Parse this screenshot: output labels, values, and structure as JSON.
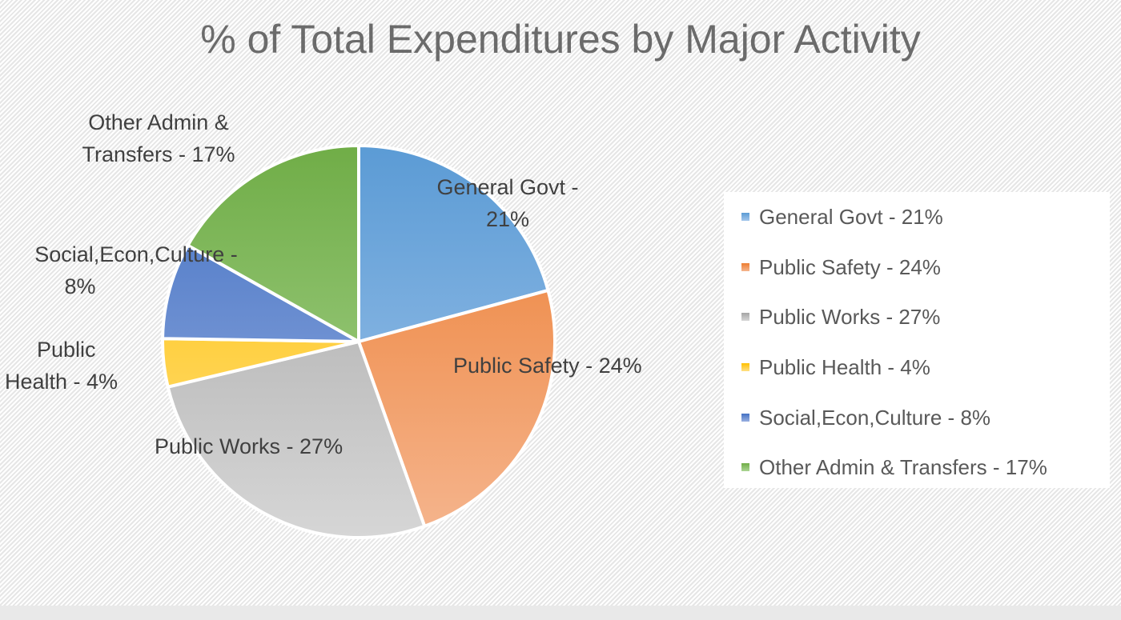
{
  "chart_data": {
    "type": "pie",
    "title": "% of Total Expenditures by Major Activity",
    "legend_position": "right",
    "slices": [
      {
        "label": "General Govt - 21%",
        "value": 21,
        "color": "#5b9bd5",
        "color_light": "#a3c6eb"
      },
      {
        "label": "Public Safety - 24%",
        "value": 24,
        "color": "#ed7d31",
        "color_light": "#f5b58e"
      },
      {
        "label": "Public Works - 27%",
        "value": 27,
        "color": "#a5a5a5",
        "color_light": "#d6d6d6"
      },
      {
        "label": "Public Health - 4%",
        "value": 4,
        "color": "#ffc000",
        "color_light": "#ffe084"
      },
      {
        "label": "Social,Econ,Culture - 8%",
        "value": 8,
        "color": "#4472c4",
        "color_light": "#98afe0"
      },
      {
        "label": "Other Admin & Transfers - 17%",
        "value": 17,
        "color": "#70ad47",
        "color_light": "#abd593"
      }
    ],
    "data_labels": [
      {
        "line1": "General Govt -",
        "line2": "21%"
      },
      {
        "line1": "Public Safety - 24%",
        "line2": ""
      },
      {
        "line1": "Public Works - 27%",
        "line2": ""
      },
      {
        "line1": "Public",
        "line2": "Health - 4%"
      },
      {
        "line1": "Social,Econ,Culture -",
        "line2": "8%"
      },
      {
        "line1": "Other Admin &",
        "line2": "Transfers - 17%"
      }
    ]
  }
}
